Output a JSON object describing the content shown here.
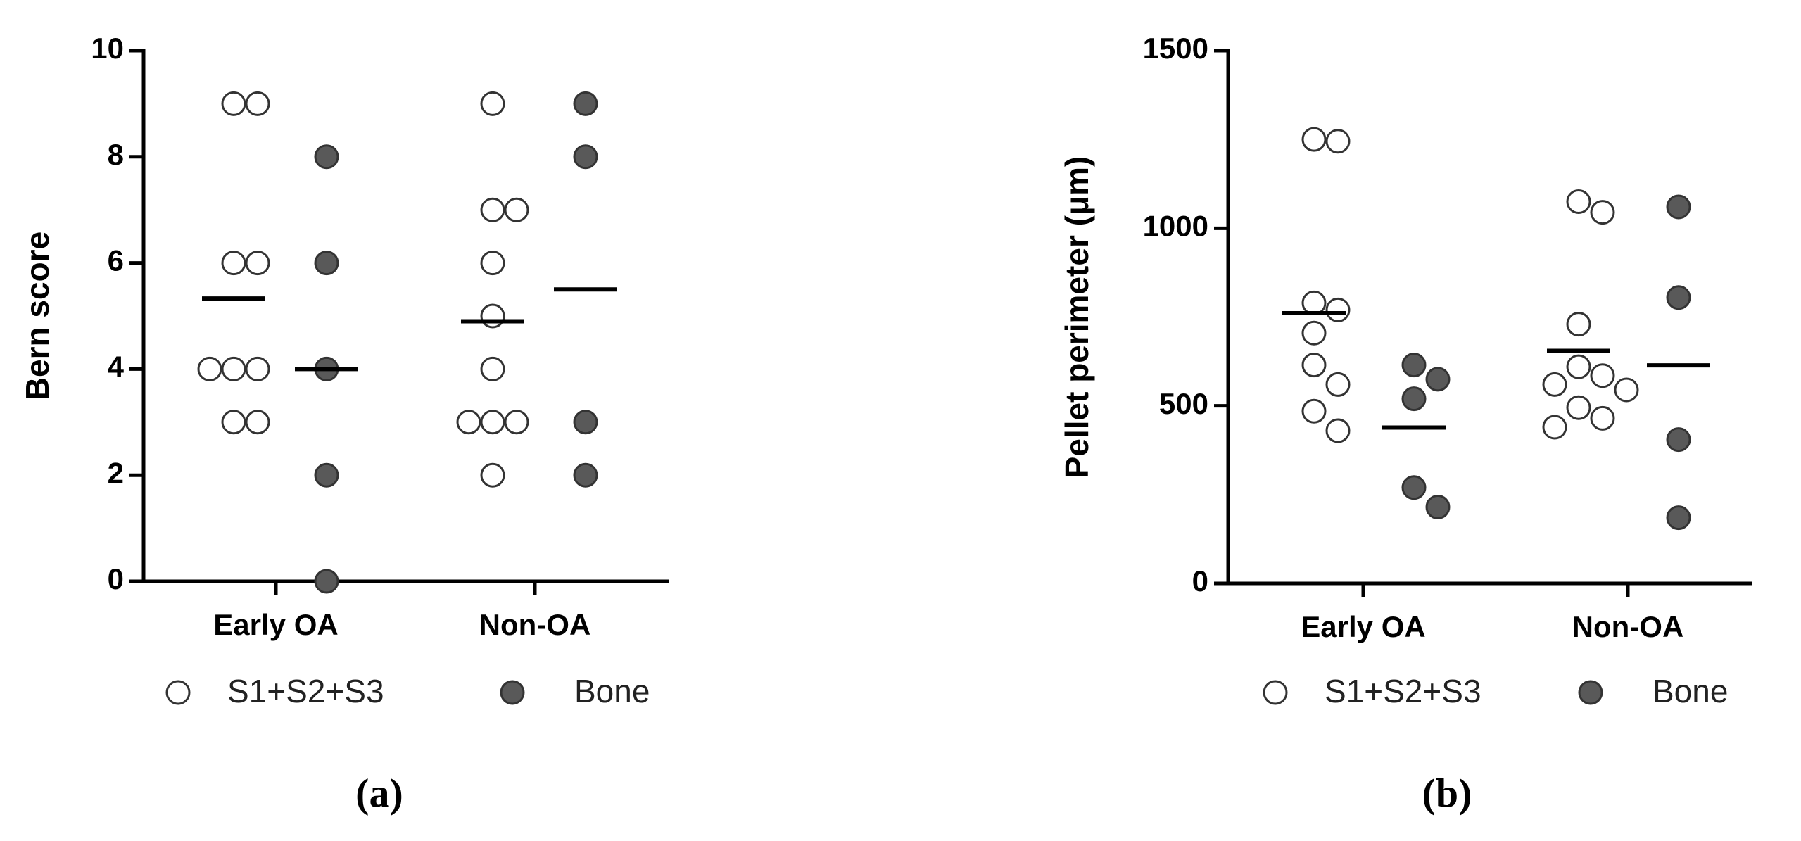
{
  "chart_data": [
    {
      "type": "dot",
      "ylabel": "Bern score",
      "panel_label": "(a)",
      "categories": [
        "Early OA",
        "Non-OA"
      ],
      "series": [
        {
          "name": "S1+S2+S3",
          "color": "#ffffff",
          "values": [
            [
              9,
              9,
              6,
              6,
              4,
              4,
              4,
              3,
              3
            ],
            [
              9,
              7,
              7,
              6,
              5,
              4,
              3,
              3,
              3,
              2
            ]
          ],
          "means": [
            5.33,
            4.9
          ]
        },
        {
          "name": "Bone",
          "color": "#595959",
          "values": [
            [
              8,
              6,
              4,
              2,
              0
            ],
            [
              9,
              8,
              3,
              2
            ]
          ],
          "means": [
            4,
            5.5
          ]
        }
      ],
      "ylim": [
        0,
        10
      ],
      "yticks": [
        0,
        2,
        4,
        6,
        8,
        10
      ]
    },
    {
      "type": "dot",
      "ylabel": "Pellet perimeter (μm)",
      "panel_label": "(b)",
      "categories": [
        "Early OA",
        "Non-OA"
      ],
      "series": [
        {
          "name": "S1+S2+S3",
          "color": "#ffffff",
          "values": [
            [
              1250,
              1245,
              790,
              770,
              705,
              615,
              560,
              485,
              430
            ],
            [
              1075,
              1045,
              730,
              610,
              585,
              560,
              545,
              495,
              465,
              440
            ]
          ],
          "means": [
            761,
            655
          ]
        },
        {
          "name": "Bone",
          "color": "#595959",
          "values": [
            [
              615,
              575,
              520,
              270,
              215
            ],
            [
              1060,
              805,
              405,
              185
            ]
          ],
          "means": [
            439,
            614
          ]
        }
      ],
      "ylim": [
        0,
        1500
      ],
      "yticks": [
        0,
        500,
        1000,
        1500
      ]
    }
  ]
}
